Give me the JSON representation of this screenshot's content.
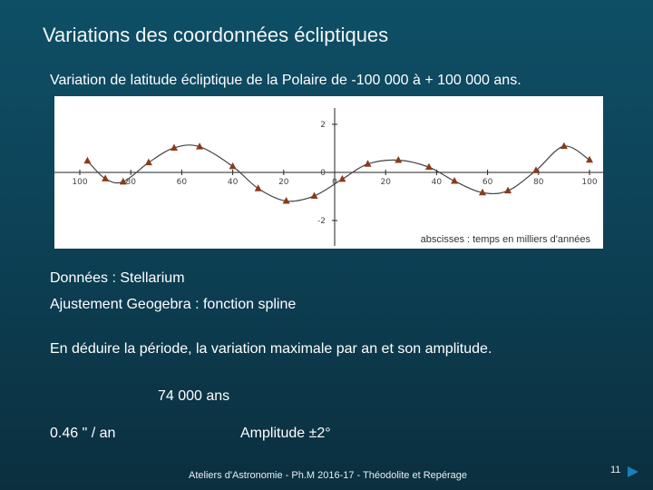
{
  "slide": {
    "title": "Variations des coordonnées écliptiques",
    "subtitle": "Variation de latitude écliptique de la Polaire de -100 000 à + 100 000 ans.",
    "source_data": "Données : Stellarium",
    "source_fit": "Ajustement Geogebra : fonction spline",
    "question": "En déduire la période, la variation maximale par an et son amplitude.",
    "answer_period": "74 000 ans",
    "answer_rate": "0.46 \" / an",
    "answer_amplitude": "Amplitude ±2°",
    "footer": "Ateliers d'Astronomie - Ph.M 2016-17 - Théodolite et Repérage",
    "page_number": "11"
  },
  "chart_data": {
    "type": "scatter",
    "title": "",
    "xlabel": "",
    "ylabel": "",
    "x_note": "abscisses : temps en milliers d'années",
    "xlim": [
      -100,
      100
    ],
    "ylim": [
      -2.5,
      2.5
    ],
    "x_ticks": [
      {
        "value": -100,
        "label": "100"
      },
      {
        "value": -80,
        "label": "80"
      },
      {
        "value": -60,
        "label": "60"
      },
      {
        "value": -40,
        "label": "40"
      },
      {
        "value": -20,
        "label": "20"
      },
      {
        "value": 0,
        "label": "0"
      },
      {
        "value": 20,
        "label": "20"
      },
      {
        "value": 40,
        "label": "40"
      },
      {
        "value": 60,
        "label": "60"
      },
      {
        "value": 80,
        "label": "80"
      },
      {
        "value": 100,
        "label": "100"
      }
    ],
    "y_ticks": [
      {
        "value": 2,
        "label": "2"
      },
      {
        "value": 0,
        "label": "0"
      },
      {
        "value": -2,
        "label": "-2"
      }
    ],
    "grid": false,
    "marker_color": "#8b3a1a",
    "curve_color": "#444444",
    "series": [
      {
        "values": [
          {
            "x": -97,
            "y": 0.48
          },
          {
            "x": -90,
            "y": -0.26
          },
          {
            "x": -83,
            "y": -0.39
          },
          {
            "x": -73,
            "y": 0.41
          },
          {
            "x": -63,
            "y": 1.02
          },
          {
            "x": -53,
            "y": 1.07
          },
          {
            "x": -40,
            "y": 0.25
          },
          {
            "x": -30,
            "y": -0.67
          },
          {
            "x": -19,
            "y": -1.19
          },
          {
            "x": -8,
            "y": -0.98
          },
          {
            "x": 3,
            "y": -0.28
          },
          {
            "x": 13,
            "y": 0.35
          },
          {
            "x": 25,
            "y": 0.51
          },
          {
            "x": 37,
            "y": 0.22
          },
          {
            "x": 47,
            "y": -0.36
          },
          {
            "x": 58,
            "y": -0.84
          },
          {
            "x": 68,
            "y": -0.76
          },
          {
            "x": 79,
            "y": 0.08
          },
          {
            "x": 90,
            "y": 1.09
          },
          {
            "x": 100,
            "y": 0.52
          }
        ]
      }
    ]
  }
}
